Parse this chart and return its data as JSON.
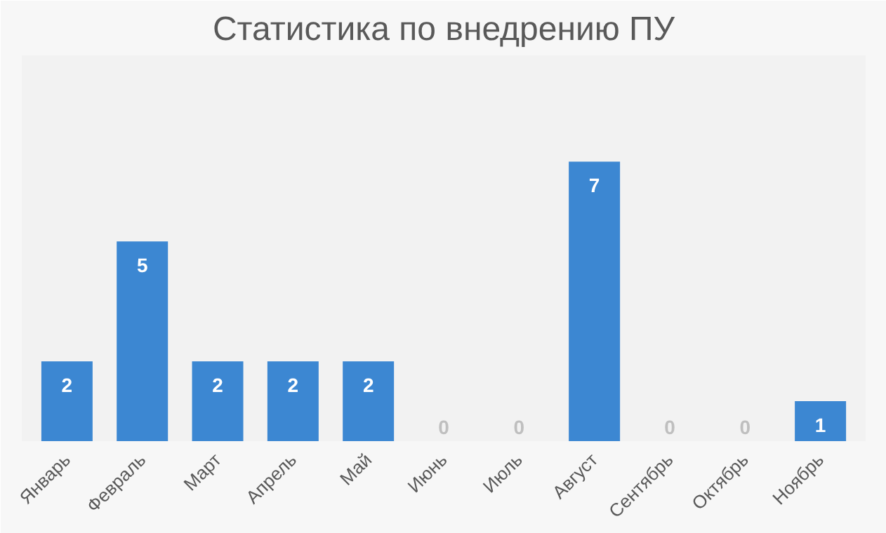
{
  "chart_data": {
    "type": "bar",
    "title": "Статистика по внедрению ПУ",
    "categories": [
      "Январь",
      "Февраль",
      "Март",
      "Апрель",
      "Май",
      "Июнь",
      "Июль",
      "Август",
      "Сентябрь",
      "Октябрь",
      "Ноябрь"
    ],
    "values": [
      2,
      5,
      2,
      2,
      2,
      0,
      0,
      7,
      0,
      0,
      1
    ],
    "color": "#3c87d2",
    "data_labels": true,
    "grid": false
  }
}
